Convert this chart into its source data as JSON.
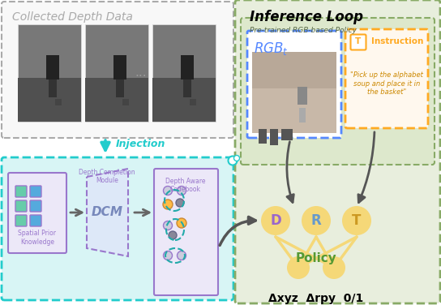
{
  "fig_width": 5.44,
  "fig_height": 3.76,
  "dpi": 100,
  "bg_color": "#ffffff",
  "title_inference": "Inference Loop",
  "title_collected": "Collected Depth Data",
  "label_pretrained": "Pre-trained RGB-based Policy",
  "label_rgb_math": "$RGB_t$",
  "label_instruction": "Instruction",
  "label_instruction_text": "\"Pick up the alphabet\nsoup and place it in\nthe basket\"",
  "label_injection": "Injection",
  "label_dcm_label": "Depth Completion\nModule",
  "label_codebook": "Depth Aware\nCodebook",
  "label_dcm": "DCM",
  "label_spatial": "Spatial Prior\nKnowledge",
  "label_D": "D",
  "label_R": "R",
  "label_T": "T",
  "label_policy": "Policy",
  "label_bottom": "Δxyz  Δrpy  0/1",
  "color_collected_border": "#aaaaaa",
  "color_injection_border": "#22cccc",
  "color_injection_bg": "#d8f5f5",
  "color_inference_bg": "#e8eedd",
  "color_inference_border": "#88aa66",
  "color_pretrained_bg": "#dde8cc",
  "color_pretrained_border": "#88aa66",
  "color_rgb_border": "#5588ff",
  "color_instruction_border": "#ffaa22",
  "color_instruction_text": "#cc8800",
  "color_spatial_border": "#9977cc",
  "color_codebook_border": "#9977cc",
  "color_injection_arrow": "#22cccc",
  "color_dark_arrow": "#555555",
  "color_D": "#9966cc",
  "color_R": "#6699cc",
  "color_T": "#cc9922",
  "color_policy_text": "#559933",
  "color_policy_circle": "#f5d878",
  "color_dcm_text": "#7788bb",
  "color_dots": "#999999"
}
